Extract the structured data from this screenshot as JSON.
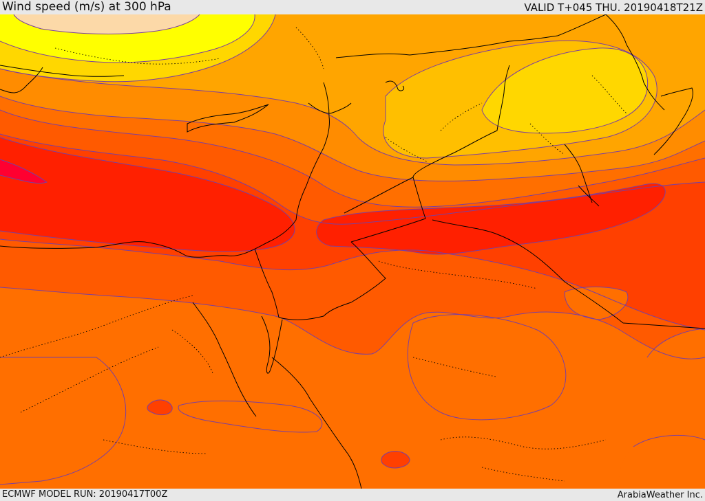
{
  "header": {
    "title": "Wind speed (m/s) at 300 hPa",
    "valid": "VALID T+045 THU. 20190418T21Z"
  },
  "footer": {
    "model_run": "ECMWF MODEL RUN: 20190417T00Z",
    "credit": "ArabiaWeather Inc."
  },
  "map": {
    "variable": "wind speed",
    "units": "m/s",
    "level": "300 hPa",
    "colors": {
      "lightest": "#fcd9a8",
      "yellow": "#ffff00",
      "gold": "#ffd700",
      "amber": "#ffbf00",
      "light_orange": "#ffa500",
      "orange": "#ff8c00",
      "dark_orange": "#ff6f00",
      "orange_red": "#ff5a00",
      "red_orange": "#ff4000",
      "red": "#ff2000",
      "crimson": "#ff0030",
      "contour_line": "#7a3fa0",
      "coastline": "#000000",
      "border": "#000000"
    }
  }
}
